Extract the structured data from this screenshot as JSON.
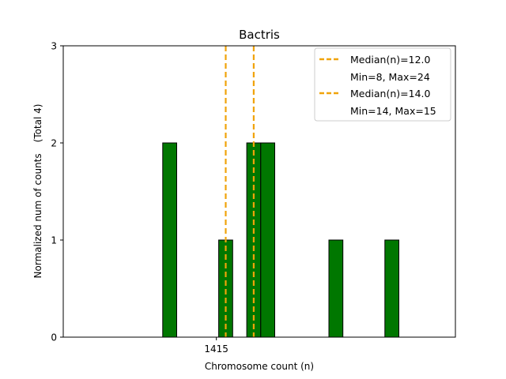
{
  "chart_data": {
    "type": "bar",
    "title": "Bactris",
    "xlabel": "Chromosome count (n)",
    "ylabel": "Normalized num of counts",
    "ylabel_note": "(Total 4)",
    "xlim": [
      6.3,
      27.3
    ],
    "ylim": [
      0,
      3
    ],
    "yticks": [
      "0",
      "1",
      "2",
      "3"
    ],
    "xtick_label": "1415",
    "xtick_value": 14.5,
    "bar_width": 0.75,
    "bar_color": "#007700",
    "bar_edge_color": "#000000",
    "median_color": "#f0a30a",
    "bars": [
      {
        "x": 12.0,
        "value": 2
      },
      {
        "x": 15.0,
        "value": 1
      },
      {
        "x": 16.5,
        "value": 2
      },
      {
        "x": 17.25,
        "value": 2
      },
      {
        "x": 20.9,
        "value": 1
      },
      {
        "x": 23.9,
        "value": 1
      }
    ],
    "medians": [
      {
        "x": 15.0,
        "label": "Median(n)=12.0",
        "range": "Min=8, Max=24"
      },
      {
        "x": 16.5,
        "label": "Median(n)=14.0",
        "range": "Min=14, Max=15"
      }
    ],
    "legend_position": "top-right",
    "grid": false
  }
}
